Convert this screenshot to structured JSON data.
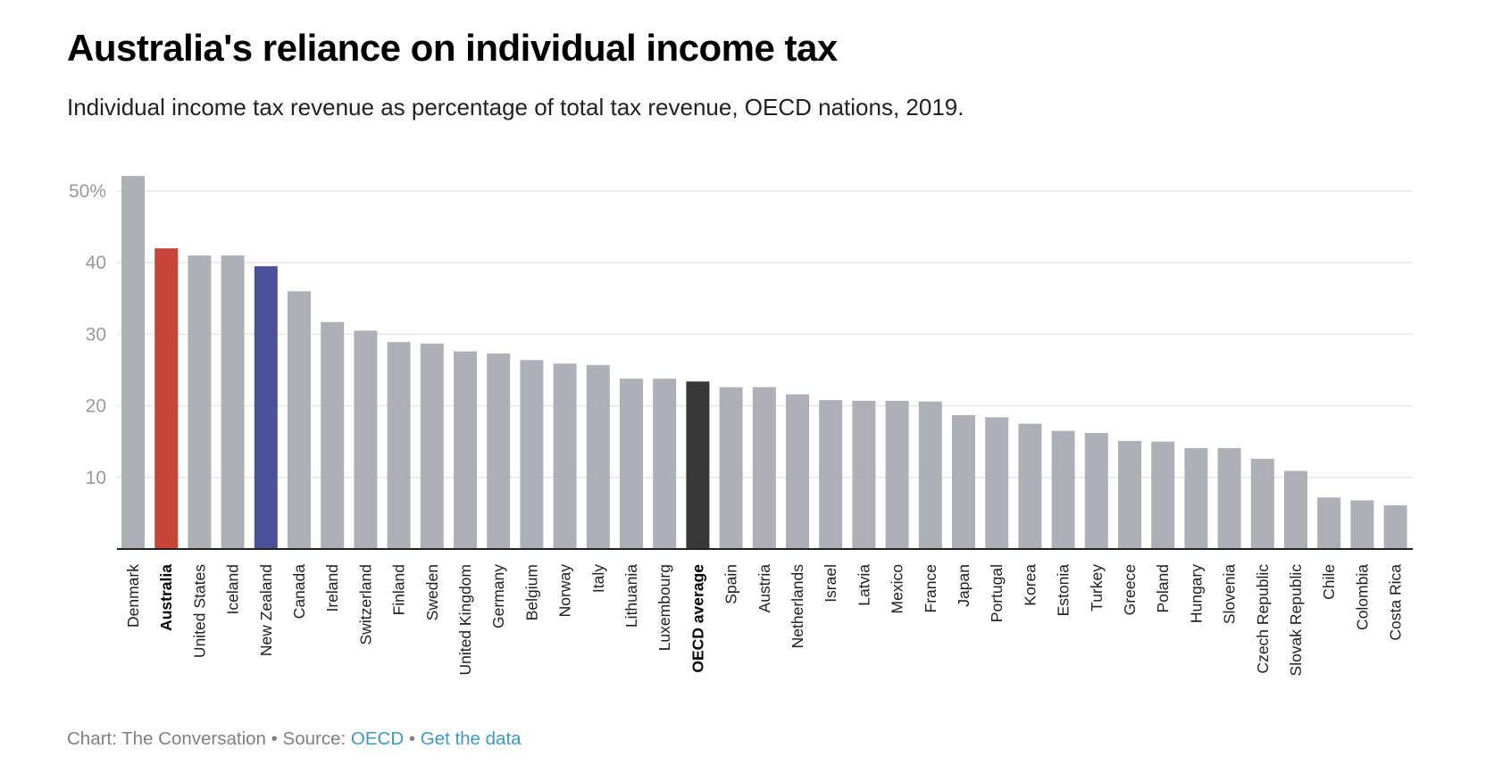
{
  "header": {
    "title": "Australia's reliance on individual income tax",
    "subtitle": "Individual income tax revenue as percentage of total tax revenue, OECD nations, 2019."
  },
  "footer": {
    "chart_credit": "Chart: The Conversation",
    "separator": " • ",
    "source_label": "Source: ",
    "source_link": "OECD",
    "data_link": "Get the data"
  },
  "colors": {
    "default": "#aeb0b7",
    "australia": "#c64536",
    "new_zealand": "#4a5199",
    "oecd_average": "#383838",
    "gridline": "#e6e6e6",
    "axis": "#222222"
  },
  "chart_data": {
    "type": "bar",
    "title": "Australia's reliance on individual income tax",
    "subtitle": "Individual income tax revenue as percentage of total tax revenue, OECD nations, 2019.",
    "xlabel": "",
    "ylabel": "",
    "ylim": [
      0,
      52.1
    ],
    "yticks": [
      10,
      20,
      30,
      40,
      50
    ],
    "ytick_labels": [
      "10",
      "20",
      "30",
      "40",
      "50%"
    ],
    "grid": true,
    "legend": "none",
    "categories": [
      "Denmark",
      "Australia",
      "United States",
      "Iceland",
      "New Zealand",
      "Canada",
      "Ireland",
      "Switzerland",
      "Finland",
      "Sweden",
      "United Kingdom",
      "Germany",
      "Belgium",
      "Norway",
      "Italy",
      "Lithuania",
      "Luxembourg",
      "OECD average",
      "Spain",
      "Austria",
      "Netherlands",
      "Israel",
      "Latvia",
      "Mexico",
      "France",
      "Japan",
      "Portugal",
      "Korea",
      "Estonia",
      "Turkey",
      "Greece",
      "Poland",
      "Hungary",
      "Slovenia",
      "Czech Republic",
      "Slovak Republic",
      "Chile",
      "Colombia",
      "Costa Rica"
    ],
    "values": [
      52.1,
      42.0,
      41.0,
      41.0,
      39.5,
      36.0,
      31.7,
      30.5,
      28.9,
      28.7,
      27.6,
      27.3,
      26.4,
      25.9,
      25.7,
      23.8,
      23.8,
      23.4,
      22.6,
      22.6,
      21.6,
      20.8,
      20.7,
      20.7,
      20.6,
      18.7,
      18.4,
      17.5,
      16.5,
      16.2,
      15.1,
      15.0,
      14.1,
      14.1,
      12.6,
      10.9,
      7.2,
      6.8,
      6.1
    ],
    "highlights": {
      "Australia": "australia",
      "New Zealand": "new_zealand",
      "OECD average": "oecd_average"
    },
    "bold_labels": [
      "Australia",
      "OECD average"
    ]
  }
}
